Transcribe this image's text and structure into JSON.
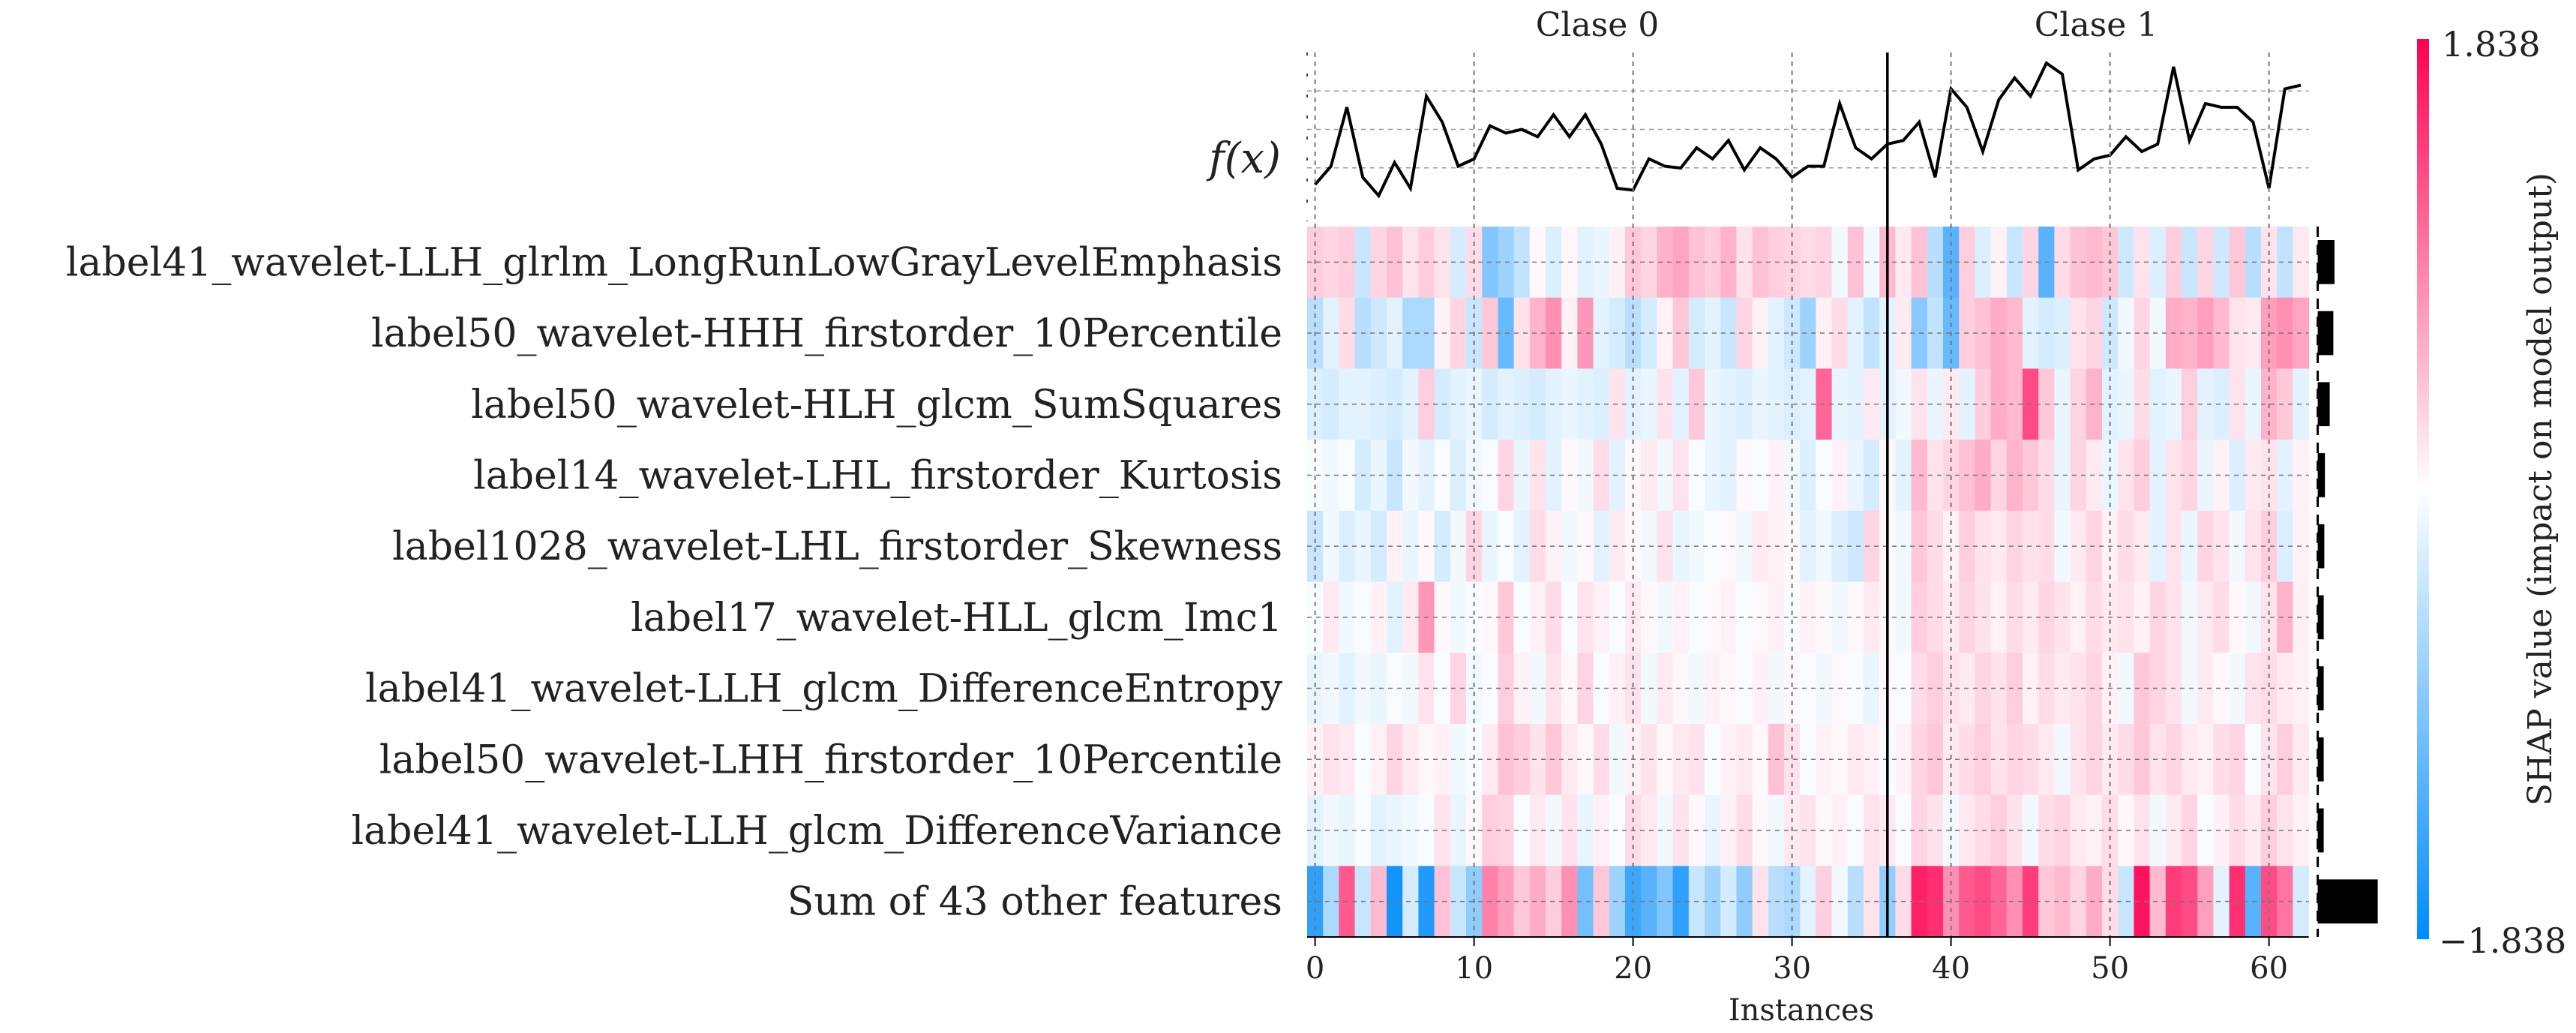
{
  "chart_data": {
    "type": "heatmap",
    "title": "",
    "xlabel": "Instances",
    "ylabel": "",
    "fx_label": "f(x)",
    "group_labels": [
      "Clase 0",
      "Clase 1"
    ],
    "group_split_after_instance": 36,
    "n_instances": 63,
    "x_ticks": [
      0,
      10,
      20,
      30,
      40,
      50,
      60
    ],
    "features": [
      "label41_wavelet-LLH_glrlm_LongRunLowGrayLevelEmphasis",
      "label50_wavelet-HHH_firstorder_10Percentile",
      "label50_wavelet-HLH_glcm_SumSquares",
      "label14_wavelet-LHL_firstorder_Kurtosis",
      "label1028_wavelet-LHL_firstorder_Skewness",
      "label17_wavelet-HLL_glcm_Imc1",
      "label41_wavelet-LLH_glcm_DifferenceEntropy",
      "label50_wavelet-LHH_firstorder_10Percentile",
      "label41_wavelet-LLH_glcm_DifferenceVariance",
      "Sum of 43 other features"
    ],
    "feature_importance": [
      0.28,
      0.26,
      0.2,
      0.12,
      0.11,
      0.1,
      0.1,
      0.1,
      0.1,
      1.0
    ],
    "colorbar": {
      "label": "SHAP value (impact on model output)",
      "min": -1.838,
      "max": 1.838,
      "min_label": "−1.838",
      "max_label": "1.838",
      "color_low": "#008bfb",
      "color_mid": "#ffffff",
      "color_high": "#ff0052"
    },
    "fx": [
      -1.8,
      -1.3,
      0.3,
      -1.6,
      -2.1,
      -1.2,
      -1.9,
      0.6,
      -0.1,
      -1.3,
      -1.1,
      -0.2,
      -0.4,
      -0.3,
      -0.5,
      0.1,
      -0.5,
      0.1,
      -0.7,
      -1.9,
      -1.95,
      -1.1,
      -1.3,
      -1.35,
      -0.8,
      -1.1,
      -0.6,
      -1.4,
      -0.8,
      -1.1,
      -1.6,
      -1.3,
      -1.3,
      0.4,
      -0.8,
      -1.1,
      -0.7,
      -0.6,
      -0.1,
      -1.6,
      0.8,
      0.3,
      -0.9,
      0.5,
      1.1,
      0.6,
      1.5,
      1.2,
      -1.4,
      -1.1,
      -1.0,
      -0.5,
      -0.9,
      -0.7,
      1.4,
      -0.6,
      0.4,
      0.3,
      0.3,
      -0.1,
      -1.9,
      0.8,
      0.9
    ],
    "rows": [
      [
        0.35,
        0.3,
        0.35,
        -0.4,
        0.3,
        0.45,
        0.2,
        0.35,
        0.2,
        -0.3,
        0.25,
        -0.9,
        -0.7,
        -0.45,
        0.05,
        -0.25,
        0.05,
        -0.2,
        -0.15,
        0.1,
        0.4,
        0.3,
        0.55,
        0.65,
        0.45,
        0.35,
        0.55,
        0.2,
        0.45,
        0.35,
        0.3,
        0.25,
        0.3,
        -0.1,
        0.45,
        -0.1,
        0.5,
        0.15,
        0.45,
        -0.5,
        -1.2,
        0.35,
        -0.25,
        0.1,
        -0.4,
        0.3,
        -1.2,
        0.25,
        0.45,
        0.5,
        0.4,
        -0.35,
        0.2,
        -0.25,
        0.35,
        -0.4,
        0.3,
        -0.35,
        0.4,
        -0.5,
        0.2,
        -0.45,
        0.15
      ],
      [
        -0.5,
        -0.2,
        0.25,
        -0.5,
        -0.35,
        -0.2,
        -0.6,
        -0.6,
        0.1,
        0.3,
        -0.4,
        0.4,
        -1.1,
        0.2,
        0.55,
        0.8,
        0.1,
        0.75,
        -0.2,
        -0.3,
        -0.5,
        -0.3,
        0.1,
        0.4,
        -0.3,
        -0.2,
        -0.4,
        0.3,
        0.1,
        -0.2,
        -0.35,
        -0.7,
        0.1,
        0.25,
        -0.2,
        -0.45,
        -0.2,
        0.15,
        -0.85,
        -0.45,
        -1.1,
        0.35,
        0.45,
        0.6,
        0.5,
        -0.2,
        -0.3,
        -0.25,
        0.2,
        0.3,
        -0.35,
        -0.1,
        0.3,
        -0.1,
        0.6,
        0.55,
        0.7,
        0.5,
        0.2,
        0.15,
        0.7,
        0.8,
        0.65
      ],
      [
        -0.25,
        -0.3,
        -0.2,
        -0.2,
        -0.25,
        -0.3,
        -0.2,
        0.35,
        -0.3,
        -0.2,
        -0.15,
        -0.3,
        -0.2,
        -0.25,
        -0.3,
        -0.2,
        -0.15,
        -0.2,
        -0.25,
        0.2,
        -0.2,
        -0.15,
        0.2,
        -0.2,
        0.4,
        -0.15,
        -0.2,
        -0.25,
        -0.15,
        -0.2,
        -0.25,
        -0.2,
        1.1,
        -0.15,
        -0.2,
        0.15,
        -0.2,
        -0.1,
        0.2,
        -0.15,
        0.15,
        -0.2,
        0.35,
        0.6,
        0.5,
        1.3,
        0.4,
        -0.15,
        0.3,
        0.55,
        -0.2,
        -0.15,
        0.25,
        -0.2,
        -0.15,
        0.35,
        -0.2,
        -0.25,
        0.2,
        -0.15,
        0.55,
        0.4,
        -0.2
      ],
      [
        -0.05,
        -0.1,
        -0.05,
        -0.3,
        -0.15,
        -0.4,
        -0.1,
        -0.2,
        -0.05,
        -0.25,
        -0.1,
        -0.05,
        0.3,
        -0.15,
        0.2,
        -0.2,
        0.05,
        -0.1,
        0.25,
        -0.2,
        0.05,
        0.15,
        -0.1,
        0.2,
        -0.05,
        -0.15,
        -0.2,
        0.05,
        -0.05,
        0.1,
        -0.1,
        -0.25,
        -0.05,
        0.1,
        -0.15,
        -0.3,
        0.05,
        -0.2,
        0.5,
        0.2,
        0.3,
        0.45,
        0.6,
        0.3,
        0.55,
        0.4,
        0.25,
        -0.15,
        0.3,
        0.15,
        -0.15,
        0.2,
        0.35,
        -0.2,
        0.2,
        0.3,
        -0.15,
        0.1,
        -0.25,
        0.15,
        0.2,
        -0.2,
        0.1
      ],
      [
        -0.4,
        -0.1,
        -0.25,
        -0.15,
        -0.3,
        0.1,
        -0.15,
        0.05,
        -0.3,
        -0.1,
        0.3,
        -0.15,
        -0.05,
        -0.2,
        0.25,
        0.1,
        -0.1,
        0.05,
        -0.2,
        0.15,
        0.05,
        -0.1,
        0.2,
        -0.15,
        -0.1,
        -0.05,
        0.05,
        -0.1,
        0.15,
        0.1,
        0.05,
        -0.2,
        -0.1,
        -0.25,
        -0.35,
        0.3,
        0.05,
        -0.1,
        0.4,
        0.25,
        0.1,
        0.35,
        0.2,
        0.15,
        0.3,
        0.2,
        0.25,
        -0.1,
        0.15,
        0.3,
        0.1,
        0.25,
        0.15,
        -0.2,
        0.2,
        -0.15,
        0.3,
        0.2,
        -0.1,
        0.2,
        0.35,
        -0.25,
        0.1
      ],
      [
        -0.05,
        0.15,
        -0.1,
        -0.05,
        0.1,
        -0.2,
        0.15,
        0.75,
        0.05,
        -0.1,
        -0.05,
        0.05,
        0.4,
        -0.05,
        0.1,
        0.25,
        -0.05,
        0.2,
        0.1,
        -0.05,
        0.15,
        0.05,
        -0.1,
        0.1,
        -0.05,
        0.05,
        0.1,
        -0.05,
        0.05,
        0.1,
        -0.05,
        0.1,
        0.05,
        -0.1,
        0.05,
        0.15,
        0.05,
        -0.1,
        0.35,
        0.25,
        0.15,
        0.3,
        0.2,
        0.1,
        0.25,
        0.15,
        0.3,
        0.2,
        0.1,
        0.25,
        0.15,
        0.2,
        0.1,
        0.3,
        0.2,
        -0.1,
        0.15,
        0.25,
        0.05,
        -0.1,
        0.2,
        0.55,
        0.1
      ],
      [
        -0.15,
        -0.1,
        -0.2,
        -0.1,
        -0.15,
        -0.05,
        -0.1,
        0.2,
        -0.05,
        0.3,
        -0.1,
        -0.05,
        0.35,
        0.1,
        -0.1,
        0.2,
        0.05,
        0.3,
        -0.05,
        0.1,
        0.2,
        -0.1,
        0.15,
        0.05,
        -0.1,
        0.1,
        0.05,
        -0.05,
        0.1,
        -0.1,
        0.05,
        -0.05,
        -0.1,
        0.05,
        -0.05,
        -0.15,
        0.05,
        -0.05,
        0.25,
        0.35,
        0.2,
        0.15,
        0.3,
        0.2,
        0.35,
        0.1,
        0.25,
        0.15,
        0.2,
        0.3,
        0.1,
        -0.1,
        0.4,
        0.3,
        0.2,
        -0.1,
        0.15,
        0.05,
        -0.1,
        0.2,
        0.25,
        0.15,
        0.1
      ],
      [
        0.1,
        0.2,
        0.15,
        -0.05,
        0.1,
        0.3,
        0.15,
        0.05,
        0.1,
        -0.1,
        -0.05,
        0.15,
        0.45,
        0.35,
        0.2,
        0.4,
        0.15,
        0.05,
        0.25,
        -0.1,
        0.1,
        0.2,
        0.05,
        0.15,
        0.2,
        -0.05,
        0.1,
        0.15,
        0.05,
        0.45,
        0.2,
        -0.05,
        0.1,
        0.05,
        0.15,
        0.1,
        -0.05,
        0.1,
        0.3,
        0.4,
        0.15,
        0.25,
        0.35,
        0.2,
        0.3,
        0.25,
        0.15,
        -0.1,
        0.2,
        0.3,
        0.15,
        0.25,
        0.4,
        0.2,
        0.3,
        0.15,
        0.1,
        0.25,
        0.3,
        -0.05,
        0.2,
        0.35,
        0.15
      ],
      [
        -0.2,
        -0.1,
        -0.15,
        -0.05,
        -0.2,
        -0.15,
        -0.1,
        -0.05,
        0.2,
        -0.15,
        0.05,
        0.35,
        0.3,
        -0.05,
        0.15,
        -0.1,
        0.2,
        -0.15,
        0.1,
        -0.05,
        0.25,
        0.15,
        -0.1,
        0.2,
        0.05,
        -0.15,
        0.1,
        0.25,
        0.05,
        -0.1,
        0.15,
        0.2,
        0.05,
        0.1,
        -0.05,
        0.2,
        0.15,
        -0.05,
        0.3,
        0.2,
        -0.1,
        0.15,
        0.25,
        0.35,
        0.2,
        -0.1,
        0.25,
        0.3,
        0.15,
        0.1,
        0.25,
        0.05,
        0.2,
        -0.1,
        0.15,
        0.3,
        -0.05,
        0.1,
        0.25,
        0.15,
        0.35,
        0.2,
        0.1
      ],
      [
        -1.5,
        -0.6,
        1.2,
        -0.4,
        0.5,
        -1.7,
        -0.3,
        -1.6,
        0.45,
        -0.4,
        -0.8,
        0.9,
        0.7,
        0.4,
        0.6,
        0.35,
        0.8,
        -1.0,
        0.4,
        -0.7,
        -1.4,
        -1.2,
        -0.9,
        -1.5,
        -0.4,
        -0.7,
        -0.3,
        -0.8,
        0.2,
        -0.5,
        -0.6,
        -0.2,
        0.35,
        -0.1,
        -0.5,
        0.2,
        -0.8,
        0.25,
        1.6,
        1.5,
        0.8,
        1.2,
        1.3,
        1.1,
        0.8,
        1.4,
        0.4,
        0.5,
        0.3,
        0.6,
        0.25,
        -0.4,
        1.7,
        0.5,
        1.4,
        1.3,
        0.7,
        -0.2,
        1.5,
        -1.2,
        1.3,
        1.0,
        -0.3
      ]
    ]
  }
}
